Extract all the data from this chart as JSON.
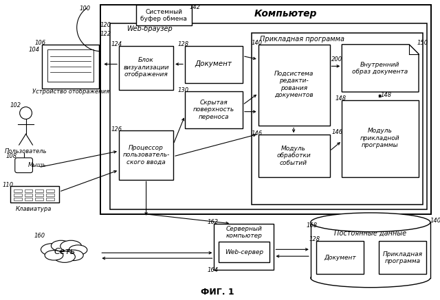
{
  "title": "ФИГ. 1",
  "bg_color": "#ffffff",
  "fig_width": 6.4,
  "fig_height": 4.37,
  "labels": {
    "computer": "Компьютер",
    "web_browser": "Web-браузер",
    "app_program_label": "Прикладная программа",
    "clipboard": "Системный\nбуфер обмена",
    "document_box": "Документ",
    "hidden_surface": "Скрытая\nповерхность\nпереноса",
    "display_block": "Блок\nвизуализации\nотображения",
    "doc_edit_sub": "Подсистема\nредакти-\nрования\nдокументов",
    "internal_image": "Внутренний\nобраз документа",
    "event_module": "Модуль\nобработки\nсобытий",
    "app_module": "Модуль\nприкладной\nпрограммы",
    "display_device": "Устройство отображения",
    "user": "Пользователь",
    "mouse": "Мышь",
    "keyboard": "Клавиатура",
    "input_processor": "Процессор\nпользователь-\nского ввода",
    "network": "Сеть",
    "server_computer": "Серверный\nкомпьютер",
    "web_server": "Web-сервер",
    "persistent_data": "Постоянные данные",
    "doc_bottom": "Документ",
    "app_bottom": "Прикладная\nпрограмма"
  },
  "numbers": {
    "n100": "100",
    "n102": "102",
    "n104": "104",
    "n106": "106",
    "n108": "108",
    "n110": "110",
    "n120": "120",
    "n122": "122",
    "n124": "124",
    "n126": "126",
    "n128": "128",
    "n130": "130",
    "n140": "140",
    "n142": "142",
    "n146": "146",
    "n148": "148",
    "n150": "150",
    "n160": "160",
    "n162": "162",
    "n164": "164",
    "n168": "168",
    "n200": "200"
  }
}
